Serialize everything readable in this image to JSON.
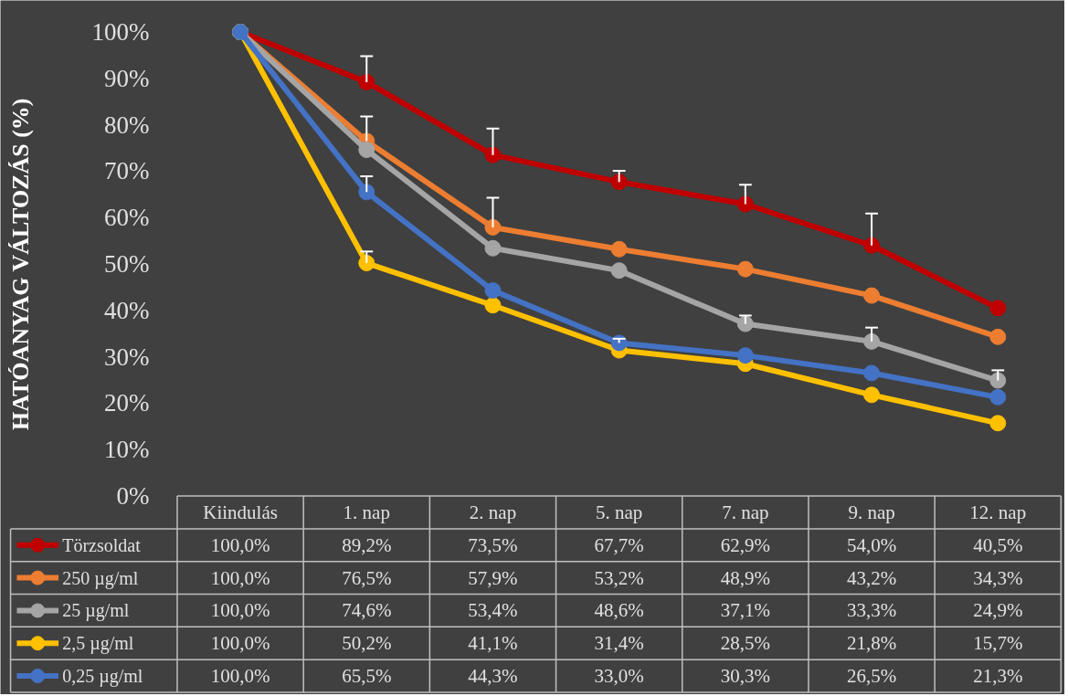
{
  "chart_data": {
    "type": "line",
    "ylabel": "HATÓANYAG VÁLTOZÁS (%)",
    "categories": [
      "Kiindulás",
      "1. nap",
      "2. nap",
      "5. nap",
      "7. nap",
      "9. nap",
      "12. nap"
    ],
    "ylim": [
      0,
      100
    ],
    "yticks": [
      {
        "value": 0,
        "label": "0%"
      },
      {
        "value": 10,
        "label": "10%"
      },
      {
        "value": 20,
        "label": "20%"
      },
      {
        "value": 30,
        "label": "30%"
      },
      {
        "value": 40,
        "label": "40%"
      },
      {
        "value": 50,
        "label": "50%"
      },
      {
        "value": 60,
        "label": "60%"
      },
      {
        "value": 70,
        "label": "70%"
      },
      {
        "value": 80,
        "label": "80%"
      },
      {
        "value": 90,
        "label": "90%"
      },
      {
        "value": 100,
        "label": "100%"
      }
    ],
    "grid": false,
    "legend": "bottom",
    "marker": "circle",
    "line_style": "solid",
    "series": [
      {
        "name": "Törzsoldat",
        "color": "#c00000",
        "values": [
          100.0,
          89.2,
          73.5,
          67.7,
          62.9,
          54.0,
          40.5
        ],
        "value_labels": [
          "100,0%",
          "89,2%",
          "73,5%",
          "67,7%",
          "62,9%",
          "54,0%",
          "40,5%"
        ],
        "errors": [
          null,
          [
            89.2,
            94.8
          ],
          [
            73.5,
            79.2
          ],
          [
            67.7,
            70.1
          ],
          [
            62.9,
            67.1
          ],
          [
            54.0,
            60.9
          ],
          null
        ]
      },
      {
        "name": "250 µg/ml",
        "color": "#ed7d31",
        "values": [
          100.0,
          76.5,
          57.9,
          53.2,
          48.9,
          43.2,
          34.3
        ],
        "value_labels": [
          "100,0%",
          "76,5%",
          "57,9%",
          "53,2%",
          "48,9%",
          "43,2%",
          "34,3%"
        ],
        "errors": [
          null,
          [
            76.5,
            81.8
          ],
          [
            57.9,
            64.3
          ],
          null,
          null,
          null,
          null
        ]
      },
      {
        "name": "25 µg/ml",
        "color": "#a5a5a5",
        "values": [
          100.0,
          74.6,
          53.4,
          48.6,
          37.1,
          33.3,
          24.9
        ],
        "value_labels": [
          "100,0%",
          "74,6%",
          "53,4%",
          "48,6%",
          "37,1%",
          "33,3%",
          "24,9%"
        ],
        "errors": [
          null,
          null,
          null,
          null,
          [
            37.1,
            38.9
          ],
          [
            33.3,
            36.3
          ],
          [
            24.9,
            27.1
          ]
        ]
      },
      {
        "name": "2,5 µg/ml",
        "color": "#ffc000",
        "values": [
          100.0,
          50.2,
          41.1,
          31.4,
          28.5,
          21.8,
          15.7
        ],
        "value_labels": [
          "100,0%",
          "50,2%",
          "41,1%",
          "31,4%",
          "28,5%",
          "21,8%",
          "15,7%"
        ],
        "errors": [
          null,
          [
            50.2,
            52.7
          ],
          null,
          null,
          null,
          null,
          null
        ]
      },
      {
        "name": "0,25 µg/ml",
        "color": "#4472c4",
        "values": [
          100.0,
          65.5,
          44.3,
          33.0,
          30.3,
          26.5,
          21.3
        ],
        "value_labels": [
          "100,0%",
          "65,5%",
          "44,3%",
          "33,0%",
          "30,3%",
          "26,5%",
          "21,3%"
        ],
        "errors": [
          null,
          [
            65.5,
            68.9
          ],
          null,
          [
            33.0,
            33.9
          ],
          null,
          null,
          null
        ]
      }
    ]
  }
}
